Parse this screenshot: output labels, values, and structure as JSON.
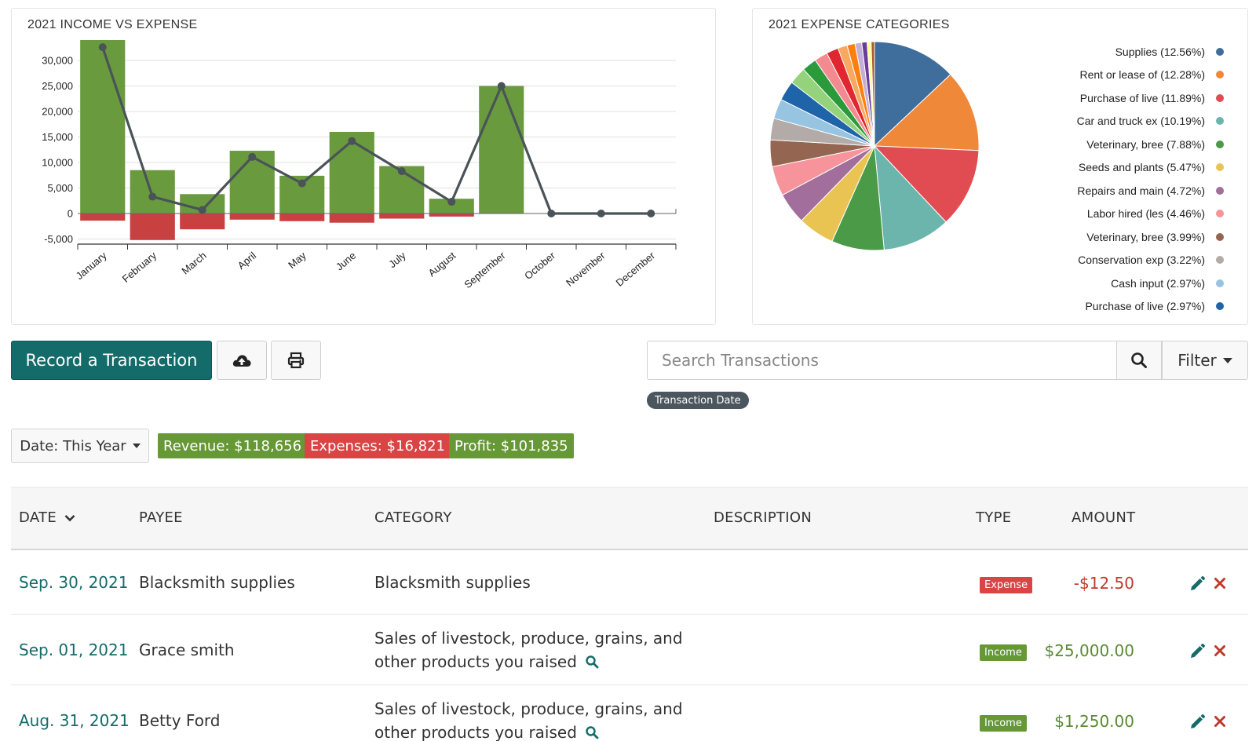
{
  "income_chart": {
    "title": "2021 INCOME VS EXPENSE"
  },
  "expense_chart": {
    "title": "2021 EXPENSE CATEGORIES"
  },
  "chart_data": [
    {
      "type": "bar",
      "title": "2021 INCOME VS EXPENSE",
      "categories": [
        "January",
        "February",
        "March",
        "April",
        "May",
        "June",
        "July",
        "August",
        "September",
        "October",
        "November",
        "December"
      ],
      "series": [
        {
          "name": "Income",
          "kind": "bar",
          "color": "#6a9a3e",
          "values": [
            34000,
            8500,
            3800,
            12300,
            7400,
            16000,
            9300,
            2900,
            25000,
            0,
            0,
            0
          ]
        },
        {
          "name": "Expense",
          "kind": "bar",
          "color": "#c94040",
          "values": [
            -1400,
            -5200,
            -3100,
            -1200,
            -1500,
            -1800,
            -1000,
            -600,
            0,
            0,
            0,
            0
          ]
        },
        {
          "name": "Profit",
          "kind": "line",
          "color": "#4a5358",
          "values": [
            32600,
            3300,
            700,
            11100,
            5900,
            14200,
            8300,
            2300,
            25000,
            0,
            0,
            0
          ]
        }
      ],
      "yticks": [
        "30,000",
        "25,000",
        "20,000",
        "15,000",
        "10,000",
        "5,000",
        "0",
        "-5,000"
      ],
      "ytick_values": [
        30000,
        25000,
        20000,
        15000,
        10000,
        5000,
        0,
        -5000
      ],
      "ylim": [
        -6000,
        34000
      ],
      "grid": true
    },
    {
      "type": "pie",
      "title": "2021 EXPENSE CATEGORIES",
      "legend_position": "right",
      "slices": [
        {
          "label": "Supplies (12.56%)",
          "value": 12.56,
          "color": "#3f6d9c"
        },
        {
          "label": "Rent or lease of (12.28%)",
          "value": 12.28,
          "color": "#f0883a"
        },
        {
          "label": "Purchase of live (11.89%)",
          "value": 11.89,
          "color": "#e04c52"
        },
        {
          "label": "Car and truck ex (10.19%)",
          "value": 10.19,
          "color": "#6bb5ad"
        },
        {
          "label": "Veterinary, bree (7.88%)",
          "value": 7.88,
          "color": "#4a9a48"
        },
        {
          "label": "Seeds and plants (5.47%)",
          "value": 5.47,
          "color": "#eac453"
        },
        {
          "label": "Repairs and main (4.72%)",
          "value": 4.72,
          "color": "#a26e9c"
        },
        {
          "label": "Labor hired (les (4.46%)",
          "value": 4.46,
          "color": "#f7939a"
        },
        {
          "label": "Veterinary, bree (3.99%)",
          "value": 3.99,
          "color": "#946550"
        },
        {
          "label": "Conservation exp (3.22%)",
          "value": 3.22,
          "color": "#b2aba7"
        },
        {
          "label": "Cash input (2.97%)",
          "value": 2.97,
          "color": "#97c4e0"
        },
        {
          "label": "Purchase of live (2.97%)",
          "value": 2.97,
          "color": "#1f63a8"
        }
      ],
      "extra_slices": [
        {
          "value": 2.6,
          "color": "#94d27c"
        },
        {
          "value": 2.2,
          "color": "#2a9a3a"
        },
        {
          "value": 2.0,
          "color": "#f28a8f"
        },
        {
          "value": 1.8,
          "color": "#e0262e"
        },
        {
          "value": 1.4,
          "color": "#f7a861"
        },
        {
          "value": 1.2,
          "color": "#ff7f0e"
        },
        {
          "value": 1.0,
          "color": "#c5b0d5"
        },
        {
          "value": 0.8,
          "color": "#6a3d9a"
        },
        {
          "value": 0.6,
          "color": "#ffff99"
        },
        {
          "value": 0.5,
          "color": "#b15928"
        }
      ]
    }
  ],
  "toolbar": {
    "record_label": "Record a Transaction",
    "upload_icon": "cloud-upload-icon",
    "print_icon": "print-icon",
    "search_placeholder": "Search Transactions",
    "filter_label": "Filter",
    "active_filter_chip": "Transaction Date"
  },
  "summary": {
    "date_label": "Date: This Year",
    "revenue": "Revenue: $118,656",
    "expenses": "Expenses: $16,821",
    "profit": "Profit: $101,835"
  },
  "table": {
    "headers": {
      "date": "DATE",
      "payee": "PAYEE",
      "category": "CATEGORY",
      "description": "DESCRIPTION",
      "type": "TYPE",
      "amount": "AMOUNT"
    },
    "rows": [
      {
        "date": "Sep. 30, 2021",
        "payee": "Blacksmith supplies",
        "category_line1": "Blacksmith supplies",
        "category_line2": "",
        "description": "",
        "type": "Expense",
        "amount": "-$12.50"
      },
      {
        "date": "Sep. 01, 2021",
        "payee": "Grace smith",
        "category_line1": "Sales of livestock, produce, grains, and",
        "category_line2": "other products you raised",
        "description": "",
        "type": "Income",
        "amount": "$25,000.00"
      },
      {
        "date": "Aug. 31, 2021",
        "payee": "Betty Ford",
        "category_line1": "Sales of livestock, produce, grains, and",
        "category_line2": "other products you raised",
        "description": "",
        "type": "Income",
        "amount": "$1,250.00"
      }
    ]
  }
}
